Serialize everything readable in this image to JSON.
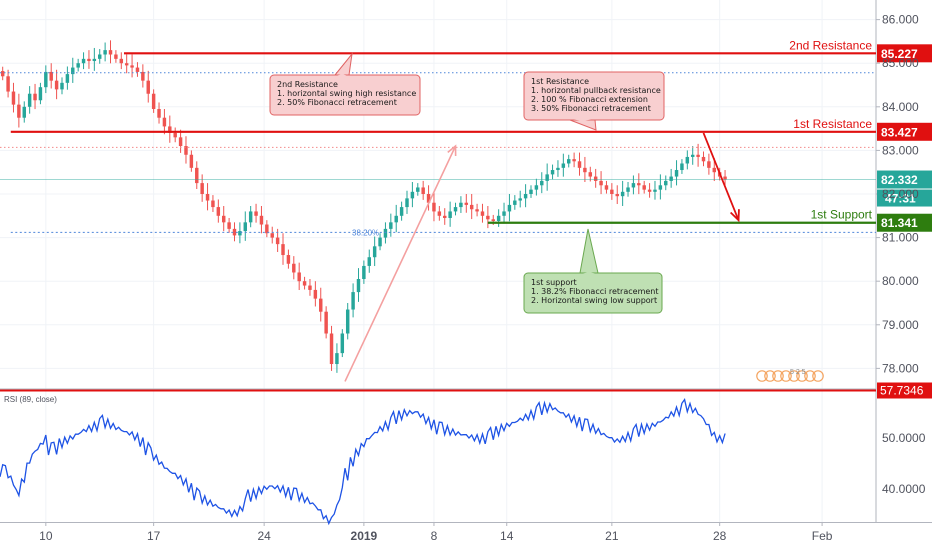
{
  "chart_data": {
    "type": "line",
    "price_axis": {
      "ticks": [
        "86.000",
        "85.000",
        "84.000",
        "83.000",
        "82.000",
        "81.000",
        "80.000",
        "79.000",
        "78.000"
      ],
      "tick_values": [
        86,
        85,
        84,
        83,
        82,
        81,
        80,
        79,
        78
      ],
      "ylim": [
        77.55,
        86.45
      ]
    },
    "rsi_axis": {
      "label": "RSI (89, close)",
      "ticks": [
        "50.0000",
        "40.0000"
      ],
      "tick_values": [
        50,
        40
      ],
      "ylim": [
        33.5,
        59.5
      ]
    },
    "x_axis": {
      "ticks": [
        "10",
        "17",
        "24",
        "2019",
        "8",
        "14",
        "21",
        "28",
        "Feb"
      ],
      "bold_tick": "2019",
      "tick_bars": [
        8.5,
        28.5,
        49,
        67.5,
        80.5,
        94,
        113.5,
        133.5,
        152.5
      ],
      "xlim": [
        0,
        162.5
      ]
    },
    "price_series": {
      "color": "#26a69a",
      "down_color": "#ef5350",
      "values": [
        84.7,
        84.35,
        84.05,
        83.75,
        84.0,
        84.3,
        84.15,
        84.45,
        84.8,
        84.6,
        84.4,
        84.55,
        84.75,
        84.9,
        85.0,
        85.1,
        85.05,
        85.1,
        85.2,
        85.3,
        85.2,
        85.1,
        85.0,
        84.95,
        84.9,
        84.8,
        84.6,
        84.3,
        83.95,
        83.75,
        83.55,
        83.4,
        83.3,
        83.1,
        82.9,
        82.6,
        82.25,
        82.0,
        81.85,
        81.7,
        81.5,
        81.35,
        81.2,
        81.05,
        81.15,
        81.35,
        81.6,
        81.5,
        81.3,
        81.1,
        81.0,
        80.85,
        80.6,
        80.4,
        80.2,
        80.0,
        79.9,
        79.8,
        79.6,
        79.3,
        78.8,
        78.1,
        78.35,
        78.8,
        79.35,
        79.75,
        80.05,
        80.35,
        80.55,
        80.8,
        81.0,
        81.2,
        81.35,
        81.5,
        81.7,
        81.9,
        82.05,
        82.15,
        82.0,
        81.8,
        81.6,
        81.5,
        81.45,
        81.6,
        81.7,
        81.8,
        81.75,
        81.65,
        81.6,
        81.5,
        81.42,
        81.38,
        81.5,
        81.6,
        81.75,
        81.85,
        81.9,
        82.0,
        82.1,
        82.2,
        82.3,
        82.45,
        82.55,
        82.6,
        82.7,
        82.8,
        82.75,
        82.6,
        82.5,
        82.4,
        82.3,
        82.2,
        82.1,
        82.0,
        81.95,
        82.05,
        82.15,
        82.25,
        82.2,
        82.1,
        82.05,
        82.1,
        82.2,
        82.3,
        82.4,
        82.55,
        82.7,
        82.85,
        82.9,
        82.85,
        82.75,
        82.6,
        82.5,
        82.4,
        82.332
      ]
    },
    "rsi_series": {
      "color": "#1e53e5",
      "values": [
        43.8,
        43.2,
        41.5,
        39.2,
        41.6,
        45.1,
        47.2,
        48.5,
        49.9,
        48.1,
        47.8,
        48.9,
        49.5,
        50.1,
        50.8,
        51.5,
        52.0,
        52.4,
        52.9,
        53.1,
        52.7,
        52.2,
        51.8,
        51.3,
        51.0,
        50.4,
        49.4,
        48.1,
        46.7,
        45.6,
        44.6,
        43.7,
        43.1,
        42.4,
        41.5,
        40.4,
        39.2,
        38.2,
        37.6,
        37.1,
        36.6,
        36.1,
        35.6,
        35.3,
        35.8,
        37.1,
        38.5,
        38.9,
        39.6,
        40.2,
        40.6,
        40.4,
        40.1,
        39.6,
        39.2,
        38.7,
        38.1,
        37.6,
        36.9,
        35.9,
        34.5,
        33.9,
        36.1,
        39.3,
        42.7,
        45.2,
        47.1,
        48.6,
        49.9,
        50.9,
        51.8,
        52.5,
        53.1,
        53.8,
        54.4,
        54.9,
        55.1,
        55.2,
        54.5,
        53.6,
        52.9,
        52.2,
        51.7,
        51.4,
        51.1,
        50.9,
        50.7,
        50.4,
        50.2,
        50.1,
        50.3,
        50.7,
        51.3,
        52.0,
        52.6,
        53.1,
        53.7,
        54.2,
        54.7,
        55.2,
        55.6,
        55.9,
        56.1,
        55.6,
        55.0,
        54.5,
        53.9,
        53.4,
        52.8,
        52.3,
        51.7,
        51.2,
        50.6,
        50.1,
        49.6,
        49.9,
        50.4,
        50.9,
        51.3,
        51.7,
        52.1,
        52.6,
        53.2,
        53.9,
        54.7,
        55.4,
        55.9,
        56.2,
        55.8,
        55.2,
        54.1,
        52.7,
        50.9,
        50.0,
        50.2
      ]
    },
    "levels": [
      {
        "name": "2nd Resistance",
        "value": 85.227,
        "label": "85.227",
        "color": "#e01010",
        "x_from": 23
      },
      {
        "name": "1st Resistance",
        "value": 83.427,
        "label": "83.427",
        "color": "#e01010",
        "x_from": 2
      },
      {
        "name": "1st Support",
        "value": 81.341,
        "label": "81.341",
        "color": "#2e7d0f",
        "x_from": 90.5
      }
    ],
    "fib_line": {
      "label": "38.20%",
      "value": 81.12,
      "x_from": 2
    },
    "dotted_lines": [
      {
        "value": 84.78,
        "color": "#4f86d9"
      },
      {
        "value": 83.07,
        "color": "#f28a8a"
      }
    ],
    "last_price": {
      "value": 82.332,
      "label": "82.332",
      "countdown": "47:31",
      "color": "#26a69a"
    },
    "rsi_level": {
      "value": 57.7346,
      "label": "57.7346",
      "color": "#e01010"
    },
    "trend_arrow": {
      "from": [
        64,
        77.7
      ],
      "to": [
        84.5,
        83.1
      ]
    },
    "projection_arrow": {
      "from": [
        130.5,
        83.4
      ],
      "to": [
        137.0,
        81.4
      ]
    },
    "annotations": [
      {
        "title": "2nd Resistance",
        "lines": [
          "1. horizontal swing high resistance",
          "2. 50% Fibonacci retracement"
        ],
        "anchor_level": 85.227,
        "kind": "resistance"
      },
      {
        "title": "1st Resistance",
        "lines": [
          "1. horizontal pullback resistance",
          "2. 100 % Fibonacci extension",
          "3. 50% Fibonacci retracement"
        ],
        "anchor_level": 83.427,
        "kind": "resistance"
      },
      {
        "title": "1st support",
        "lines": [
          "1. 38.2% Fibonacci retracement",
          "2.  Horizontal swing low support"
        ],
        "anchor_level": 81.341,
        "kind": "support"
      }
    ],
    "watermark_digits": "5 2 5"
  }
}
